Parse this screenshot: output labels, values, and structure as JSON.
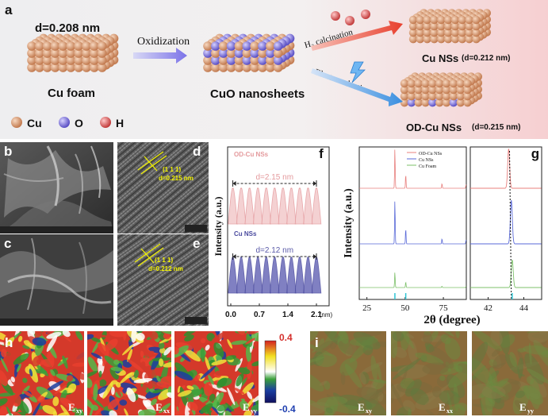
{
  "panels": {
    "a": "a",
    "b": "b",
    "c": "c",
    "d": "d",
    "e": "e",
    "f": "f",
    "g": "g",
    "h": "h",
    "i": "i"
  },
  "schematic": {
    "d_top": "d=0.208 nm",
    "cu_foam": "Cu foam",
    "oxidization": "Oxidization",
    "cuo": "CuO nanosheets",
    "h2_calc": "H₂ calcination",
    "electroreduction": "Electroreduction",
    "cu_nss": "Cu NSs",
    "cu_nss_d": "(d=0.212 nm)",
    "odcu_nss": "OD-Cu NSs",
    "odcu_nss_d": "(d=0.215 nm)",
    "legend": [
      {
        "label": "Cu",
        "color": "#d9a07a"
      },
      {
        "label": "O",
        "color": "#8f86e0"
      },
      {
        "label": "H",
        "color": "#e05a5a"
      }
    ]
  },
  "hrtem": {
    "d_plane": "(1 1 1)",
    "d_spacing": "d=0.215 nm",
    "e_plane": "(1 1 1)",
    "e_spacing": "d=0.212 nm"
  },
  "panel_f": {
    "top_label": "OD-Cu NSs",
    "top_span": "d=2.15 nm",
    "bottom_label": "Cu NSs",
    "bottom_span": "d=2.12 nm",
    "ylabel": "Intensity (a.u.)",
    "xunit": "(nm)",
    "xticks": [
      "0.0",
      "0.7",
      "1.4",
      "2.1"
    ]
  },
  "chart_data": [
    {
      "type": "line",
      "title": "",
      "xlabel": "",
      "ylabel": "Intensity (a.u.)",
      "xlim": [
        0.0,
        2.3
      ],
      "xticks": [
        0.0,
        0.7,
        1.4,
        2.1
      ],
      "series": [
        {
          "name": "OD-Cu NSs",
          "peaks": 11,
          "span_nm": 2.15,
          "color": "#e49a9d"
        },
        {
          "name": "Cu NSs",
          "peaks": 11,
          "span_nm": 2.12,
          "color": "#4a4a9e"
        }
      ]
    },
    {
      "type": "line",
      "title": "",
      "xlabel": "2θ (degree)",
      "ylabel": "Intensity (a.u.)",
      "xlim": [
        20,
        90
      ],
      "xticks": [
        25,
        50,
        75
      ],
      "series": [
        {
          "name": "OD-Cu NSs",
          "color": "#e8807e",
          "peaks_x": [
            43.3,
            50.4,
            74.1,
            89.9
          ],
          "peaks_h": [
            1.0,
            0.35,
            0.12,
            0.1
          ]
        },
        {
          "name": "Cu NSs",
          "color": "#5a6ad8",
          "peaks_x": [
            43.3,
            50.4,
            74.1,
            89.9
          ],
          "peaks_h": [
            1.0,
            0.35,
            0.12,
            0.1
          ]
        },
        {
          "name": "Cu Foam",
          "color": "#7dc06a",
          "peaks_x": [
            43.3,
            50.4,
            74.1,
            89.9
          ],
          "peaks_h": [
            0.55,
            0.2,
            0.05,
            0.05
          ]
        }
      ]
    },
    {
      "type": "line",
      "title": "",
      "xlabel": "",
      "ylabel": "",
      "xlim": [
        41,
        45
      ],
      "xticks": [
        42,
        44
      ],
      "series": [
        {
          "name": "OD-Cu NSs",
          "color": "#e8807e",
          "peak_x": 43.15
        },
        {
          "name": "Cu NSs",
          "color": "#5a6ad8",
          "peak_x": 43.3
        },
        {
          "name": "Cu Foam",
          "color": "#7dc06a",
          "peak_x": 43.35
        }
      ]
    }
  ],
  "panel_g": {
    "ylabel": "Intensity (a.u.)",
    "xlabel": "2θ (degree)",
    "legend": [
      "OD-Cu NSs",
      "Cu NSs",
      "Cu Foam"
    ],
    "xticks_left": [
      "25",
      "50",
      "75"
    ],
    "xticks_right": [
      "42",
      "44"
    ]
  },
  "panel_h": {
    "labels": [
      "E",
      "E",
      "E"
    ],
    "subs": [
      "xy",
      "xx",
      "yy"
    ],
    "cbar_max": "0.4",
    "cbar_min": "-0.4"
  },
  "panel_i": {
    "labels": [
      "E",
      "E",
      "E"
    ],
    "subs": [
      "xy",
      "xx",
      "yy"
    ]
  },
  "colors": {
    "pink": "#e49a9d",
    "navy": "#4a4a9e",
    "accent_red": "#d4302c"
  }
}
